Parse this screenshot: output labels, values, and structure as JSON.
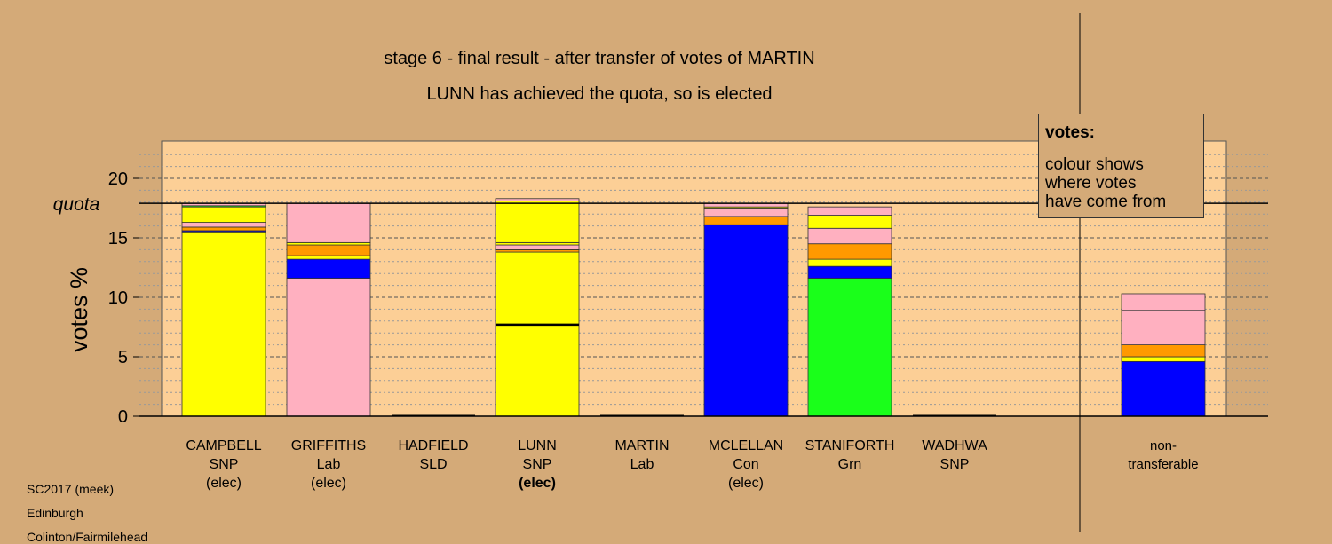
{
  "titles": {
    "line1": "stage 6 - final result - after transfer of votes of MARTIN",
    "line2": "LUNN has achieved the quota, so is elected"
  },
  "legend": {
    "title": "votes:",
    "lines": [
      "colour shows",
      "where votes",
      "have come from"
    ]
  },
  "footer": {
    "line1": "SC2017 (meek)",
    "line2": "Edinburgh",
    "line3": "Colinton/Fairmilehead"
  },
  "colors": {
    "background": "#d4aa78",
    "plot_area": "#fccf96",
    "SNP": "#ffff00",
    "Lab": "#ffb0c0",
    "SLD": "#ff9900",
    "Con": "#0000ff",
    "Grn": "#1aff1a"
  },
  "chart_data": {
    "type": "bar",
    "stacked": true,
    "ylabel": "votes %",
    "ylim": [
      0,
      23
    ],
    "yticks": [
      0,
      5,
      10,
      15,
      20
    ],
    "quota": 17.9,
    "quota_label": "quota",
    "grid": "dashed horizontal lines every 1% (darker every 5%)",
    "categories": [
      {
        "name": "CAMPBELL",
        "party": "SNP",
        "status": "(elec)"
      },
      {
        "name": "GRIFFITHS",
        "party": "Lab",
        "status": "(elec)"
      },
      {
        "name": "HADFIELD",
        "party": "SLD",
        "status": ""
      },
      {
        "name": "LUNN",
        "party": "SNP",
        "status": "(elec)",
        "status_bold": true
      },
      {
        "name": "MARTIN",
        "party": "Lab",
        "status": ""
      },
      {
        "name": "MCLELLAN",
        "party": "Con",
        "status": "(elec)"
      },
      {
        "name": "STANIFORTH",
        "party": "Grn",
        "status": ""
      },
      {
        "name": "WADHWA",
        "party": "SNP",
        "status": ""
      },
      {
        "name": "non-\ntransferable",
        "party": "",
        "status": ""
      }
    ],
    "stacks": [
      [
        {
          "from": "SNP",
          "value": 15.5
        },
        {
          "from": "Con",
          "value": 0.1
        },
        {
          "from": "SLD",
          "value": 0.3
        },
        {
          "from": "Lab",
          "value": 0.4
        },
        {
          "from": "SNP",
          "value": 1.3
        },
        {
          "from": "Grn",
          "value": 0.1
        },
        {
          "from": "Lab",
          "value": 0.2
        }
      ],
      [
        {
          "from": "Lab",
          "value": 11.6
        },
        {
          "from": "Con",
          "value": 1.6
        },
        {
          "from": "SNP",
          "value": 0.3
        },
        {
          "from": "SLD",
          "value": 0.9
        },
        {
          "from": "SNP",
          "value": 0.2
        },
        {
          "from": "Lab",
          "value": 3.3
        }
      ],
      [],
      [
        {
          "from": "SNP",
          "value": 7.7
        },
        {
          "from": "SNP",
          "value": 6.1
        },
        {
          "from": "SLD",
          "value": 0.2
        },
        {
          "from": "Lab",
          "value": 0.4
        },
        {
          "from": "SNP",
          "value": 0.2
        },
        {
          "from": "SNP",
          "value": 3.5
        },
        {
          "from": "Lab",
          "value": 0.2
        }
      ],
      [],
      [
        {
          "from": "Con",
          "value": 16.1
        },
        {
          "from": "SLD",
          "value": 0.7
        },
        {
          "from": "Lab",
          "value": 0.7
        },
        {
          "from": "SNP",
          "value": 0.1
        },
        {
          "from": "Lab",
          "value": 0.3
        }
      ],
      [
        {
          "from": "Grn",
          "value": 11.6
        },
        {
          "from": "Con",
          "value": 1.0
        },
        {
          "from": "SNP",
          "value": 0.6
        },
        {
          "from": "SLD",
          "value": 1.3
        },
        {
          "from": "Lab",
          "value": 1.3
        },
        {
          "from": "SNP",
          "value": 1.1
        },
        {
          "from": "Lab",
          "value": 0.7
        }
      ],
      [],
      [
        {
          "from": "Con",
          "value": 4.6
        },
        {
          "from": "SNP",
          "value": 0.4
        },
        {
          "from": "SLD",
          "value": 1.0
        },
        {
          "from": "Lab",
          "value": 2.9
        },
        {
          "from": "Lab",
          "value": 1.4
        }
      ]
    ]
  }
}
